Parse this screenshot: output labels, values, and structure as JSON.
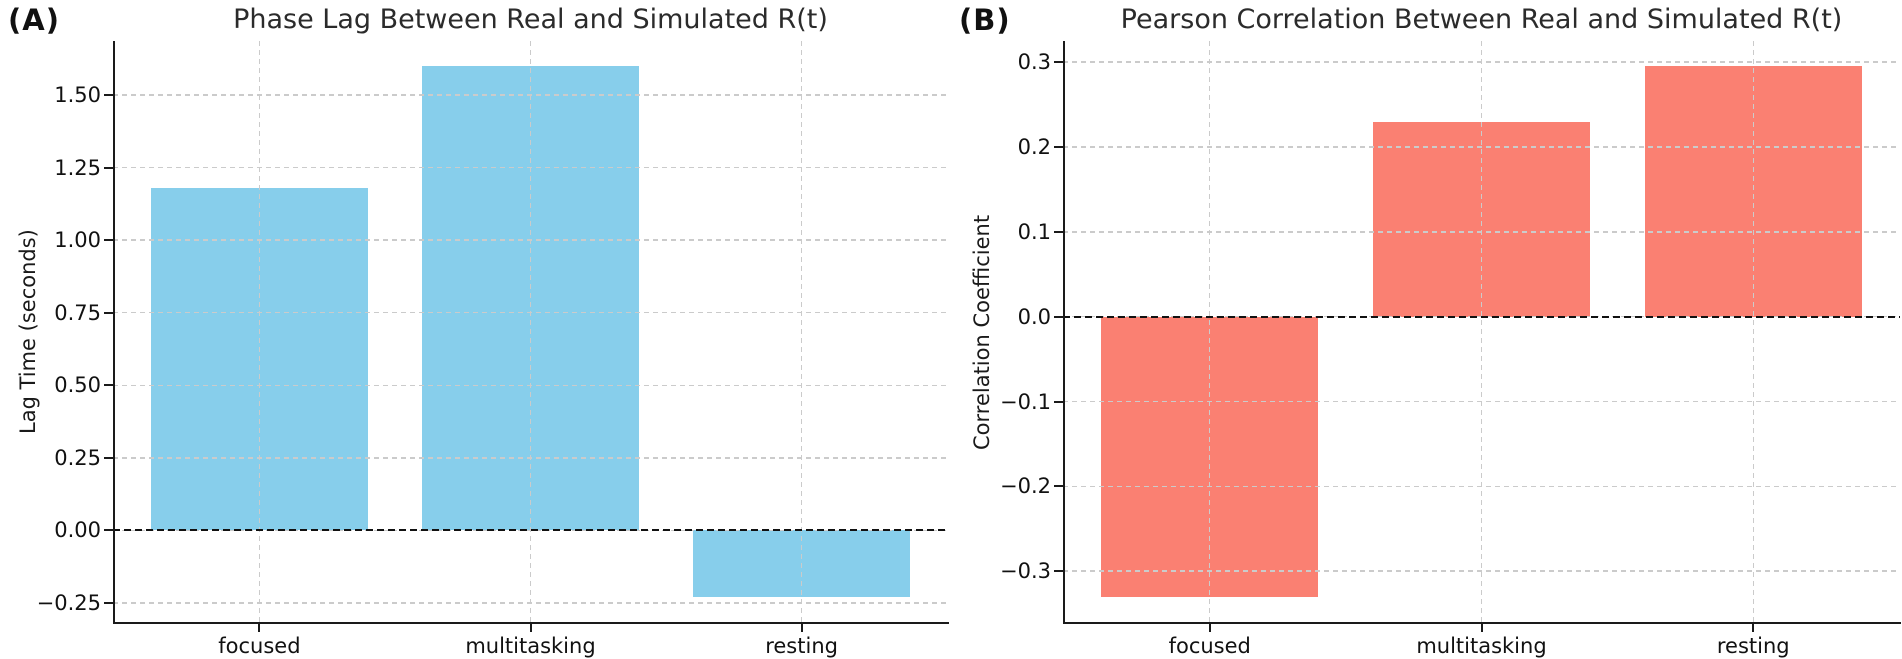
{
  "figure": {
    "background": "#ffffff",
    "text_color": "#111111",
    "grid_color": "#cbcbcb",
    "zero_line_color": "#111111"
  },
  "chart_data": [
    {
      "type": "bar",
      "panel_label": "(A)",
      "title": "Phase Lag Between Real and Simulated R(t)",
      "ylabel": "Lag Time (seconds)",
      "xlabel": "",
      "categories": [
        "focused",
        "multitasking",
        "resting"
      ],
      "values": [
        1.18,
        1.6,
        -0.23
      ],
      "bar_color": "#87CEEB",
      "ylim": [
        -0.319,
        1.686
      ],
      "ytick_values": [
        1.5,
        1.25,
        1.0,
        0.75,
        0.5,
        0.25,
        0.0,
        -0.25
      ],
      "ytick_labels": [
        "1.50",
        "1.25",
        "1.00",
        "0.75",
        "0.50",
        "0.25",
        "0.00",
        "−0.25"
      ],
      "grid": "dashed, both axes, drawn over bars",
      "zero_line": "dashed black at y=0",
      "legend": "none"
    },
    {
      "type": "bar",
      "panel_label": "(B)",
      "title": "Pearson Correlation Between Real and Simulated R(t)",
      "ylabel": "Correlation Coefficient",
      "xlabel": "",
      "categories": [
        "focused",
        "multitasking",
        "resting"
      ],
      "values": [
        -0.33,
        0.23,
        0.295
      ],
      "bar_color": "#FA8072",
      "ylim": [
        -0.361,
        0.325
      ],
      "ytick_values": [
        0.3,
        0.2,
        0.1,
        0.0,
        -0.1,
        -0.2,
        -0.3
      ],
      "ytick_labels": [
        "0.3",
        "0.2",
        "0.1",
        "0.0",
        "−0.1",
        "−0.2",
        "−0.3"
      ],
      "grid": "dashed, both axes, drawn over bars",
      "zero_line": "dashed black at y=0",
      "legend": "none"
    }
  ]
}
